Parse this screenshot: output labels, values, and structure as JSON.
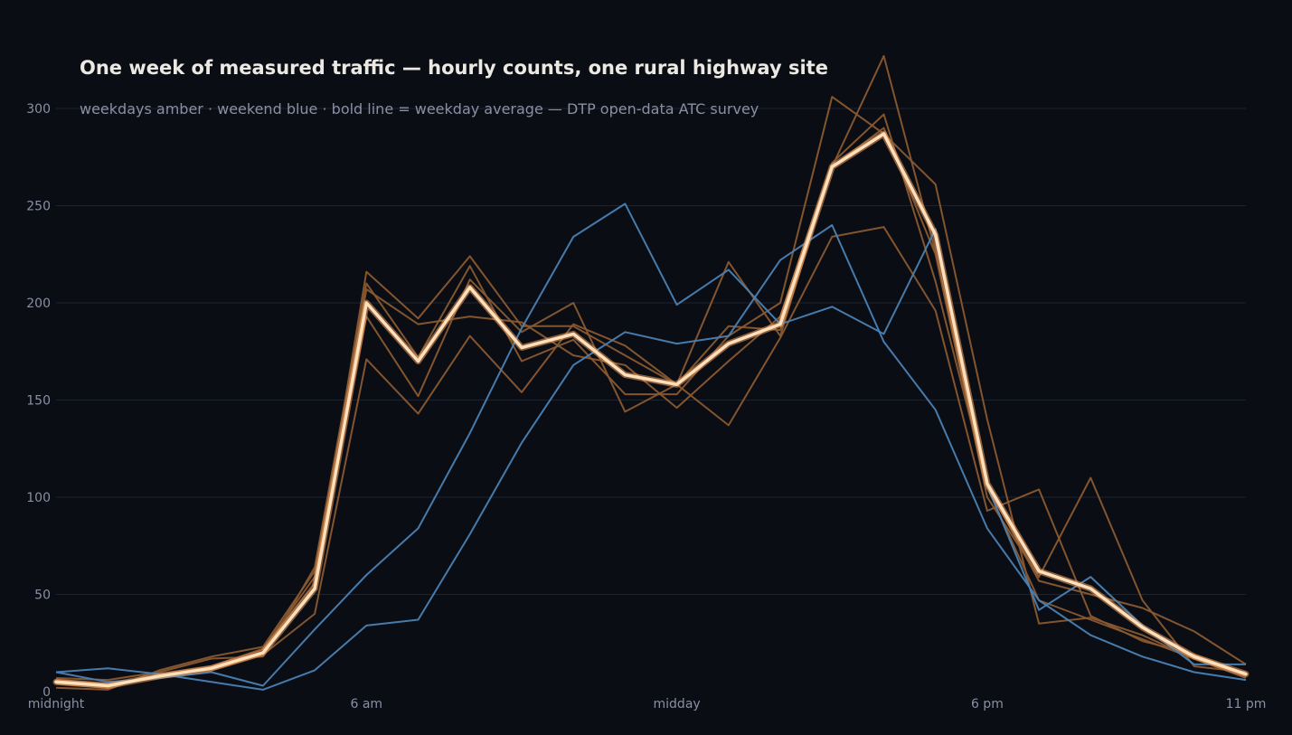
{
  "chart_data": {
    "type": "line",
    "title": "One week of measured traffic — hourly counts, one rural highway site",
    "subtitle": "weekdays amber · weekend blue · bold line = weekday average — DTP open-data ATC survey",
    "xlabel": "",
    "ylabel": "",
    "x": [
      0,
      1,
      2,
      3,
      4,
      5,
      6,
      7,
      8,
      9,
      10,
      11,
      12,
      13,
      14,
      15,
      16,
      17,
      18,
      19,
      20,
      21,
      22,
      23
    ],
    "x_ticks": [
      {
        "x": 0,
        "label": "midnight"
      },
      {
        "x": 6,
        "label": "6 am"
      },
      {
        "x": 12,
        "label": "midday"
      },
      {
        "x": 18,
        "label": "6 pm"
      },
      {
        "x": 23,
        "label": "11 pm"
      }
    ],
    "xlim": [
      0,
      23
    ],
    "y_ticks": [
      0,
      50,
      100,
      150,
      200,
      250,
      300
    ],
    "ylim": [
      0,
      320
    ],
    "grid": true,
    "colors": {
      "background": "#0a0d14",
      "grid": "#1e2330",
      "weekday": "#8a5a30",
      "weekend": "#4a82b4",
      "average": "#ffe0bb",
      "average_glow": "#f0a060"
    },
    "series": [
      {
        "group": "weekday",
        "values": [
          4,
          2,
          9,
          11,
          19,
          40,
          171,
          143,
          183,
          154,
          189,
          178,
          158,
          137,
          182,
          234,
          239,
          196,
          93,
          104,
          39,
          26,
          19,
          9
        ]
      },
      {
        "group": "weekday",
        "values": [
          6,
          4,
          7,
          13,
          22,
          59,
          193,
          152,
          212,
          185,
          200,
          144,
          158,
          221,
          183,
          270,
          290,
          225,
          100,
          59,
          110,
          47,
          13,
          10
        ]
      },
      {
        "group": "weekday",
        "values": [
          7,
          6,
          10,
          17,
          18,
          64,
          210,
          172,
          219,
          170,
          181,
          153,
          153,
          183,
          200,
          306,
          287,
          261,
          140,
          35,
          38,
          29,
          17,
          7
        ]
      },
      {
        "group": "weekday",
        "values": [
          5,
          2,
          9,
          13,
          22,
          56,
          216,
          192,
          224,
          188,
          188,
          173,
          158,
          188,
          186,
          270,
          327,
          226,
          105,
          47,
          37,
          27,
          17,
          8
        ]
      },
      {
        "group": "weekday",
        "values": [
          2,
          1,
          11,
          18,
          23,
          62,
          207,
          189,
          193,
          190,
          173,
          168,
          146,
          170,
          193,
          272,
          297,
          211,
          106,
          57,
          50,
          43,
          31,
          14
        ]
      },
      {
        "group": "weekend",
        "values": [
          10,
          12,
          9,
          5,
          1,
          11,
          34,
          37,
          81,
          128,
          168,
          185,
          179,
          183,
          222,
          240,
          180,
          145,
          84,
          47,
          29,
          18,
          10,
          6
        ]
      },
      {
        "group": "weekend",
        "values": [
          10,
          5,
          7,
          10,
          3,
          32,
          60,
          84,
          133,
          187,
          234,
          251,
          199,
          217,
          189,
          198,
          184,
          238,
          106,
          42,
          59,
          34,
          14,
          14
        ]
      },
      {
        "group": "average",
        "values": [
          5,
          3,
          8,
          12,
          20,
          53,
          200,
          170,
          208,
          177,
          184,
          163,
          158,
          179,
          189,
          270,
          287,
          235,
          107,
          62,
          53,
          33,
          18,
          9
        ]
      }
    ]
  }
}
